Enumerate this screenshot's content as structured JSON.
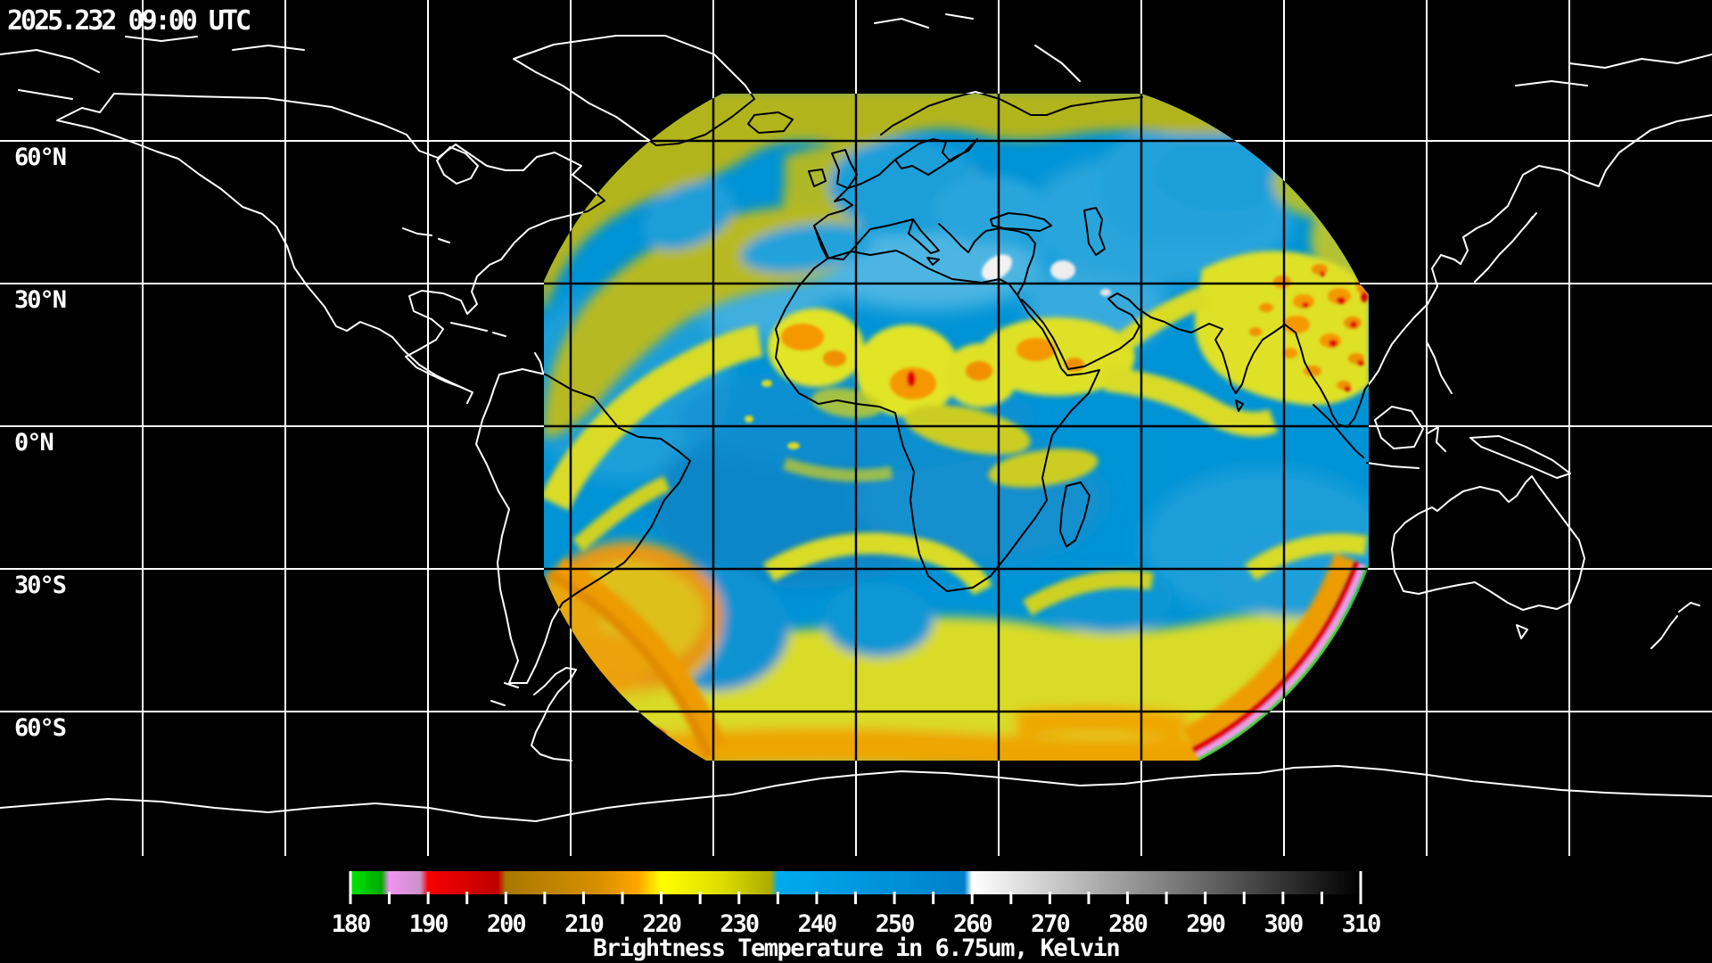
{
  "title_overlay": {
    "timestamp": "2025.232 09:00 UTC"
  },
  "map": {
    "projection": "equirectangular",
    "background_color": "#000000",
    "coastline_color_over_space": "#ffffff",
    "coastline_color_over_data": "#000000",
    "graticule": {
      "lon_step_deg": 30,
      "lat_step_deg": 30,
      "line_color_over_space": "#ffffff",
      "line_color_over_data": "#000000"
    },
    "latitude_labels": [
      {
        "label": "60°N",
        "lat": 60
      },
      {
        "label": "30°N",
        "lat": 30
      },
      {
        "label": "0°N",
        "lat": 0
      },
      {
        "label": "30°S",
        "lat": -30
      },
      {
        "label": "60°S",
        "lat": -60
      }
    ]
  },
  "colorbar": {
    "title": "Brightness Temperature in 6.75um, Kelvin",
    "units": "Kelvin",
    "min": 180,
    "max": 310,
    "label_step": 10,
    "tick_step": 5,
    "labels": [
      "180",
      "190",
      "200",
      "210",
      "220",
      "230",
      "240",
      "250",
      "260",
      "270",
      "280",
      "290",
      "300",
      "310"
    ],
    "palette": [
      {
        "t": 180,
        "color": "#00E800"
      },
      {
        "t": 184,
        "color": "#00A800"
      },
      {
        "t": 185,
        "color": "#F492F4"
      },
      {
        "t": 189,
        "color": "#C892C8"
      },
      {
        "t": 190,
        "color": "#F80000"
      },
      {
        "t": 199,
        "color": "#BE0000"
      },
      {
        "t": 200,
        "color": "#A87800"
      },
      {
        "t": 212,
        "color": "#D89000"
      },
      {
        "t": 217,
        "color": "#FFA600"
      },
      {
        "t": 220,
        "color": "#FFFF00"
      },
      {
        "t": 228,
        "color": "#DCDC00"
      },
      {
        "t": 234,
        "color": "#ACAC00"
      },
      {
        "t": 235,
        "color": "#00AAEE"
      },
      {
        "t": 259,
        "color": "#0080C8"
      },
      {
        "t": 260,
        "color": "#FFFFFF"
      },
      {
        "t": 310,
        "color": "#000000"
      }
    ]
  }
}
